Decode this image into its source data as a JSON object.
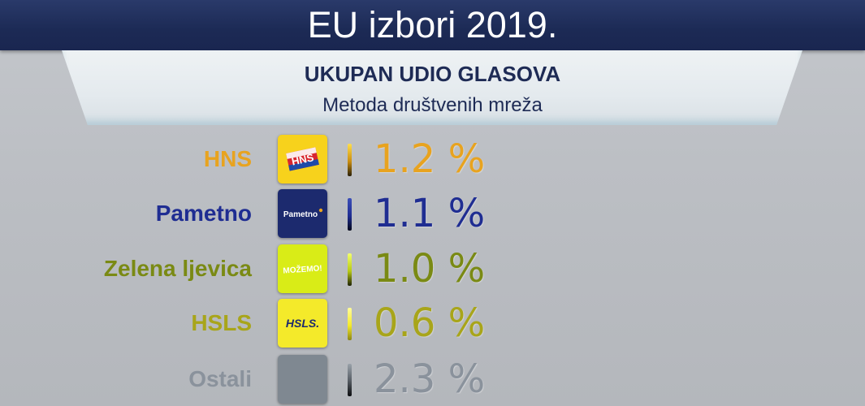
{
  "header": {
    "title": "EU izbori 2019.",
    "subtitle": "UKUPAN UDIO GLASOVA",
    "method": "Metoda društvenih mreža"
  },
  "results": [
    {
      "party": "HNS",
      "percent_label": "1.2 %",
      "value": 1.2,
      "color": "#e8a31f",
      "logo_text": "HNS",
      "logo_icon": "hns-logo-icon",
      "logo_bg": "#f7d21c"
    },
    {
      "party": "Pametno",
      "percent_label": "1.1 %",
      "value": 1.1,
      "color": "#1f2d92",
      "logo_text": "Pametno",
      "logo_icon": "pametno-logo-icon",
      "logo_bg": "#1c2a6e"
    },
    {
      "party": "Zelena ljevica",
      "percent_label": "1.0 %",
      "value": 1.0,
      "color": "#7a8a14",
      "logo_text": "MOŽEMO!",
      "logo_icon": "mozemo-logo-icon",
      "logo_bg": "#d9ec17"
    },
    {
      "party": "HSLS",
      "percent_label": "0.6 %",
      "value": 0.6,
      "color": "#a8a51a",
      "logo_text": "HSLS.",
      "logo_icon": "hsls-logo-icon",
      "logo_bg": "#f4ea2a"
    },
    {
      "party": "Ostali",
      "percent_label": "2.3 %",
      "value": 2.3,
      "color": "#8a929c",
      "logo_text": "",
      "logo_icon": "ostali-blank-icon",
      "logo_bg": "#7f8891"
    }
  ]
}
